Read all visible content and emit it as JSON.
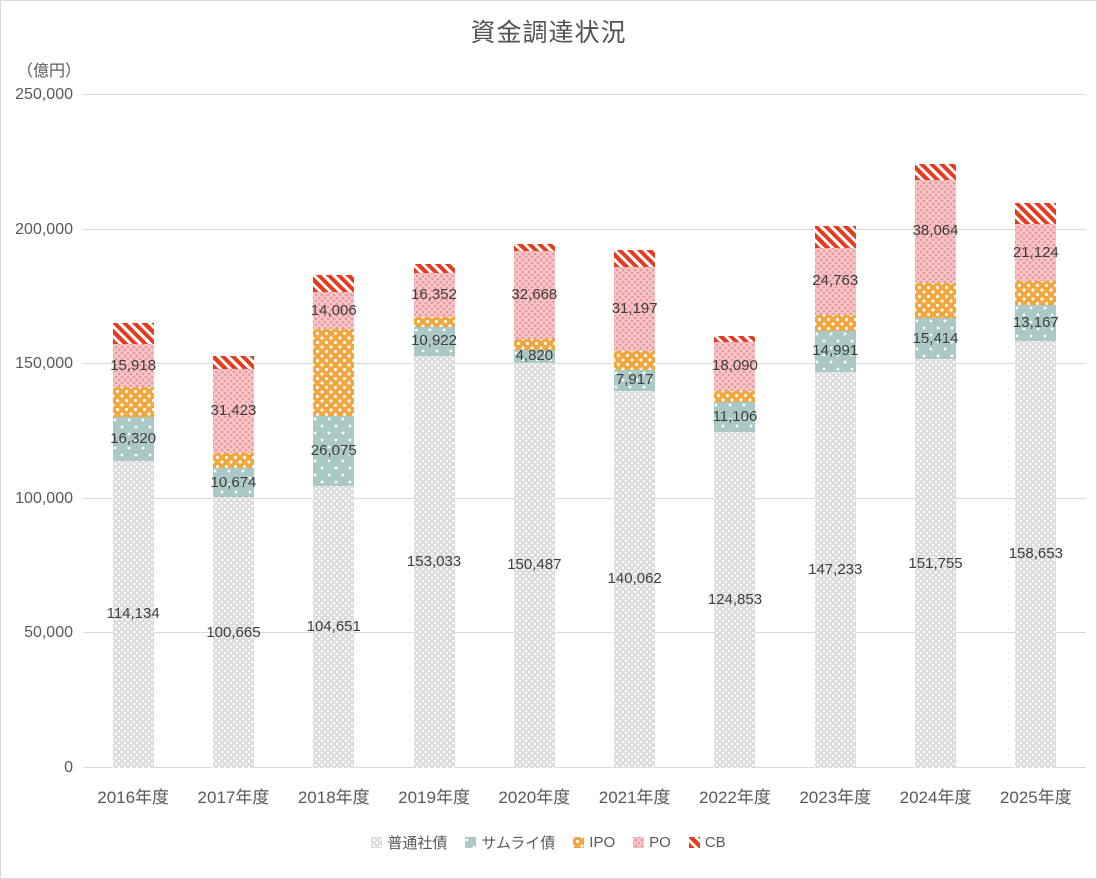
{
  "title": "資金調達状況",
  "y_axis": {
    "unit_label": "（億円）",
    "ticks": [
      0,
      50000,
      100000,
      150000,
      200000,
      250000
    ],
    "max": 250000
  },
  "chart_data": {
    "type": "bar",
    "stacked": true,
    "title": "資金調達状況",
    "ylabel": "（億円）",
    "ylim": [
      0,
      250000
    ],
    "grid": true,
    "legend_position": "bottom",
    "categories": [
      "2016年度",
      "2017年度",
      "2018年度",
      "2019年度",
      "2020年度",
      "2021年度",
      "2022年度",
      "2023年度",
      "2024年度",
      "2025年度"
    ],
    "series": [
      {
        "name": "普通社債",
        "pattern": "gray",
        "color": "#dbdbdb",
        "show_labels": true,
        "values": [
          114134,
          100665,
          104651,
          153033,
          150487,
          140062,
          124853,
          147233,
          151755,
          158653
        ]
      },
      {
        "name": "サムライ債",
        "pattern": "teal",
        "color": "#a9c8c6",
        "show_labels": true,
        "values": [
          16320,
          10674,
          26075,
          10922,
          4820,
          7917,
          11106,
          14991,
          15414,
          13167
        ]
      },
      {
        "name": "IPO",
        "pattern": "orange",
        "color": "#f1a73e",
        "show_labels": false,
        "values": [
          11000,
          5600,
          32200,
          3700,
          4100,
          6900,
          4200,
          6200,
          13100,
          9100
        ]
      },
      {
        "name": "PO",
        "pattern": "pink",
        "color": "#f8c8ca",
        "show_labels": true,
        "values": [
          15918,
          31423,
          14006,
          16352,
          32668,
          31197,
          18090,
          24763,
          38064,
          21124
        ]
      },
      {
        "name": "CB",
        "pattern": "red",
        "color": "#e83a1e",
        "show_labels": false,
        "values": [
          7800,
          4600,
          6200,
          3300,
          2500,
          6300,
          2400,
          8300,
          6200,
          7800
        ]
      }
    ]
  }
}
